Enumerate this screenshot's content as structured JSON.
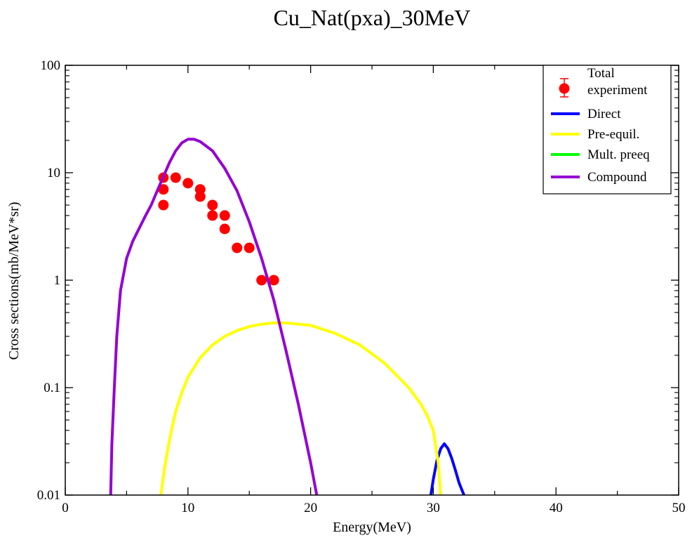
{
  "chart_data": {
    "type": "line",
    "title": "Cu_Nat(pxa)_30MeV",
    "xlabel": "Energy(MeV)",
    "ylabel": "Cross sections(mb/MeV*sr)",
    "xlim": [
      0,
      50
    ],
    "ylim": [
      0.01,
      100
    ],
    "yscale": "log",
    "grid": false,
    "legend_position": "top-right",
    "x_ticks": [
      0,
      10,
      20,
      30,
      40,
      50
    ],
    "x_tick_labels": [
      "0",
      "10",
      "20",
      "30",
      "40",
      "50"
    ],
    "y_ticks": [
      0.01,
      0.1,
      1,
      10,
      100
    ],
    "y_tick_labels": [
      "0.01",
      "0.1",
      "1",
      "10",
      "100"
    ],
    "legend": [
      {
        "label": "Total",
        "kind": "none",
        "color": "#000000"
      },
      {
        "label": "experiment",
        "kind": "marker",
        "color": "#ff0000"
      },
      {
        "label": "Direct",
        "kind": "line",
        "color": "#0000ff"
      },
      {
        "label": "Pre-equil.",
        "kind": "line",
        "color": "#ffff00"
      },
      {
        "label": "Mult. preeq",
        "kind": "line",
        "color": "#00ff00"
      },
      {
        "label": "Compound",
        "kind": "line",
        "color": "#9400d3"
      }
    ],
    "series": [
      {
        "name": "experiment",
        "style": "marker",
        "color": "#ff0000",
        "x": [
          8,
          8,
          8,
          9,
          10,
          11,
          11,
          12,
          12,
          13,
          13,
          14,
          15,
          16,
          17
        ],
        "y": [
          9,
          7,
          5,
          9,
          8,
          7,
          6,
          5,
          4,
          4,
          3,
          2,
          2,
          1,
          1
        ]
      },
      {
        "name": "Direct",
        "style": "line",
        "color": "#0000ff",
        "x": [
          29.8,
          30.0,
          30.3,
          30.6,
          30.9,
          31.2,
          31.5,
          31.8,
          32.1,
          32.5
        ],
        "y": [
          0.01,
          0.014,
          0.021,
          0.027,
          0.03,
          0.027,
          0.022,
          0.017,
          0.013,
          0.01
        ]
      },
      {
        "name": "Pre-equil.",
        "style": "line",
        "color": "#ffff00",
        "x": [
          7.8,
          8.1,
          8.5,
          9.0,
          9.5,
          10.0,
          11.0,
          12.0,
          13.0,
          14.0,
          15.0,
          16.0,
          17.0,
          18.0,
          20.0,
          22.0,
          24.0,
          26.0,
          28.0,
          29.0,
          29.5,
          30.0,
          30.4,
          30.6
        ],
        "y": [
          0.01,
          0.018,
          0.033,
          0.06,
          0.09,
          0.125,
          0.19,
          0.25,
          0.3,
          0.34,
          0.37,
          0.39,
          0.4,
          0.4,
          0.38,
          0.32,
          0.25,
          0.17,
          0.1,
          0.07,
          0.055,
          0.04,
          0.02,
          0.01
        ]
      },
      {
        "name": "Compound",
        "style": "line",
        "color": "#9400d3",
        "x": [
          3.7,
          3.8,
          4.0,
          4.2,
          4.5,
          5.0,
          5.5,
          6.0,
          6.5,
          7.0,
          7.5,
          8.0,
          8.5,
          9.0,
          9.5,
          10.0,
          10.5,
          11.0,
          12.0,
          13.0,
          14.0,
          15.0,
          16.0,
          17.0,
          18.0,
          19.0,
          20.0,
          20.5
        ],
        "y": [
          0.01,
          0.03,
          0.1,
          0.3,
          0.8,
          1.6,
          2.3,
          3.0,
          3.9,
          5.0,
          6.8,
          9.2,
          12.5,
          16.0,
          19.0,
          20.5,
          20.5,
          19.5,
          16.0,
          11.0,
          6.8,
          3.5,
          1.6,
          0.65,
          0.22,
          0.07,
          0.02,
          0.01
        ]
      }
    ]
  }
}
